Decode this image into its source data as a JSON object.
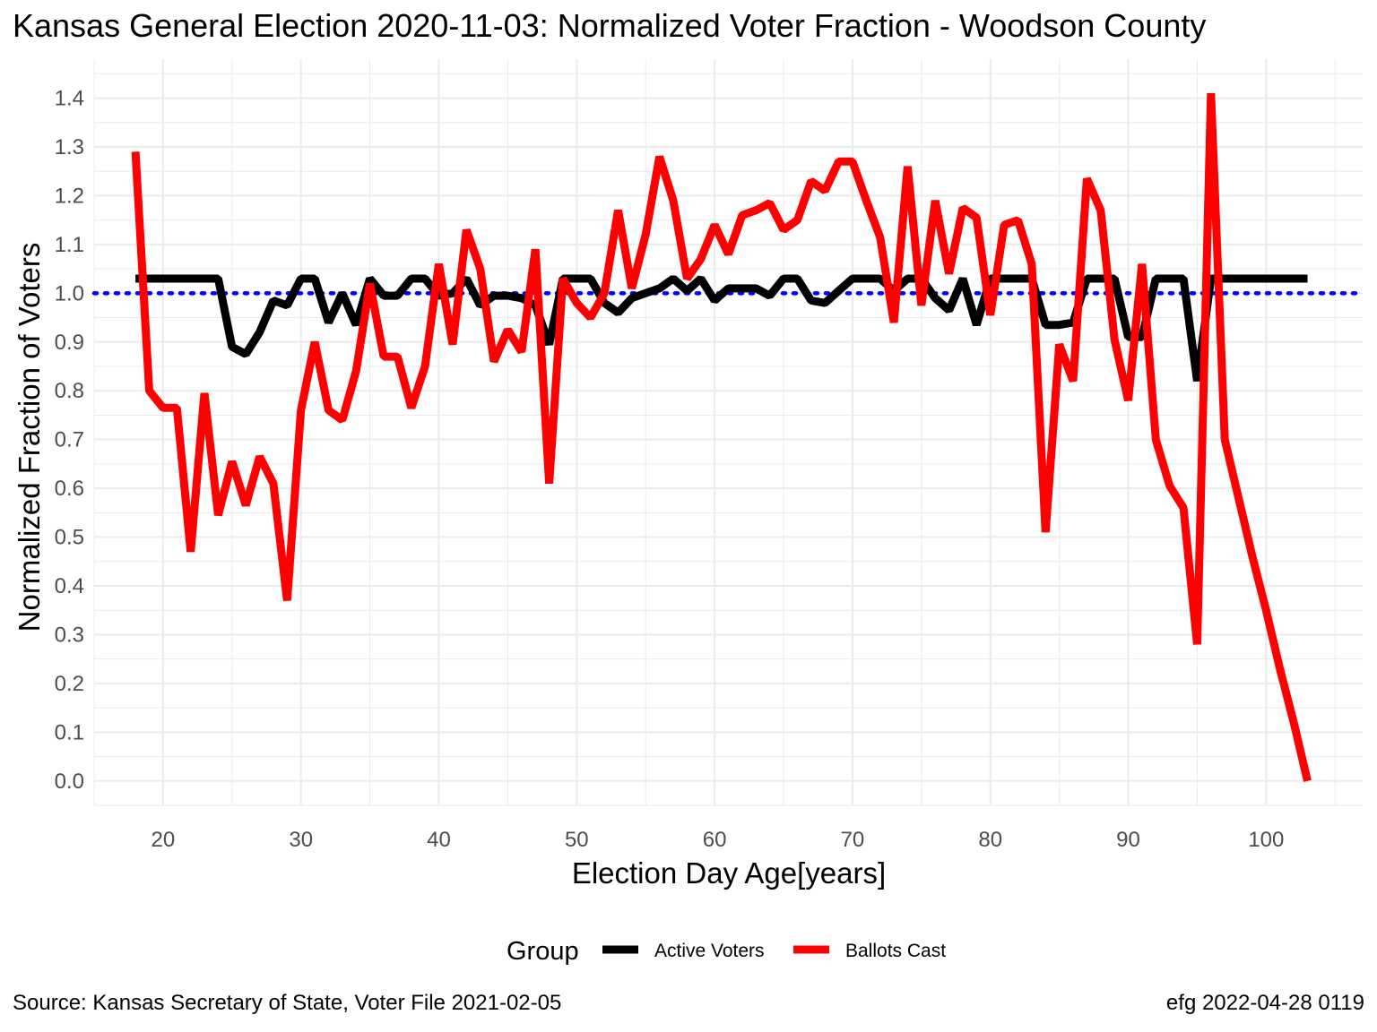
{
  "title": "Kansas General Election 2020-11-03:  Normalized Voter Fraction - Woodson County",
  "caption_left": "Source:  Kansas Secretary of State, Voter File  2021-02-05",
  "caption_right": "efg 2022-04-28 0119",
  "colors": {
    "active": "#000000",
    "ballots": "#ff0000",
    "reference": "#0000ff",
    "grid": "#ebebeb",
    "tick_text": "#4d4d4d"
  },
  "chart_data": {
    "type": "line",
    "title": "Kansas General Election 2020-11-03:  Normalized Voter Fraction - Woodson County",
    "xlabel": "Election Day Age[years]",
    "ylabel": "Normalized Fraction of Voters",
    "xlim": [
      15,
      107
    ],
    "ylim": [
      -0.05,
      1.48
    ],
    "xticks": [
      20,
      30,
      40,
      50,
      60,
      70,
      80,
      90,
      100
    ],
    "yticks": [
      0.0,
      0.1,
      0.2,
      0.3,
      0.4,
      0.5,
      0.6,
      0.7,
      0.8,
      0.9,
      1.0,
      1.1,
      1.2,
      1.3,
      1.4
    ],
    "ytick_labels": [
      "0.0",
      "0.1",
      "0.2",
      "0.3",
      "0.4",
      "0.5",
      "0.6",
      "0.7",
      "0.8",
      "0.9",
      "1.0",
      "1.1",
      "1.2",
      "1.3",
      "1.4"
    ],
    "grid": true,
    "legend": {
      "title": "Group",
      "position": "bottom"
    },
    "reference_line": {
      "y": 1.0,
      "style": "dotted"
    },
    "series": [
      {
        "name": "Active Voters",
        "color": "#000000",
        "x": [
          18,
          19,
          20,
          21,
          22,
          23,
          24,
          25,
          26,
          27,
          28,
          29,
          30,
          31,
          32,
          33,
          34,
          35,
          36,
          37,
          38,
          39,
          40,
          41,
          42,
          43,
          44,
          45,
          46,
          47,
          48,
          49,
          50,
          51,
          52,
          53,
          54,
          55,
          56,
          57,
          58,
          59,
          60,
          61,
          62,
          63,
          64,
          65,
          66,
          67,
          68,
          69,
          70,
          71,
          72,
          73,
          74,
          75,
          76,
          77,
          78,
          79,
          80,
          81,
          82,
          83,
          84,
          85,
          86,
          87,
          88,
          89,
          90,
          91,
          92,
          93,
          94,
          95,
          96,
          97,
          98,
          99,
          100,
          101,
          102,
          103
        ],
        "values": [
          1.03,
          1.03,
          1.03,
          1.03,
          1.03,
          1.03,
          1.03,
          0.89,
          0.875,
          0.92,
          0.985,
          0.975,
          1.03,
          1.03,
          0.94,
          1.0,
          0.935,
          1.03,
          0.995,
          0.995,
          1.03,
          1.03,
          0.995,
          1.0,
          1.03,
          0.975,
          0.995,
          0.995,
          0.99,
          0.975,
          0.895,
          1.03,
          1.03,
          1.03,
          0.98,
          0.96,
          0.99,
          1.0,
          1.01,
          1.03,
          1.005,
          1.03,
          0.985,
          1.01,
          1.01,
          1.01,
          0.995,
          1.03,
          1.03,
          0.985,
          0.98,
          1.005,
          1.03,
          1.03,
          1.03,
          1.005,
          1.03,
          1.03,
          0.99,
          0.965,
          1.03,
          0.935,
          1.03,
          1.03,
          1.03,
          1.03,
          0.935,
          0.935,
          0.94,
          1.03,
          1.03,
          1.03,
          0.91,
          0.91,
          1.03,
          1.03,
          1.03,
          0.82,
          1.03,
          1.03,
          1.03,
          1.03,
          1.03,
          1.03,
          1.03,
          1.03
        ]
      },
      {
        "name": "Ballots Cast",
        "color": "#ff0000",
        "x": [
          18,
          19,
          20,
          21,
          22,
          23,
          24,
          25,
          26,
          27,
          28,
          29,
          30,
          31,
          32,
          33,
          34,
          35,
          36,
          37,
          38,
          39,
          40,
          41,
          42,
          43,
          44,
          45,
          46,
          47,
          48,
          49,
          50,
          51,
          52,
          53,
          54,
          55,
          56,
          57,
          58,
          59,
          60,
          61,
          62,
          63,
          64,
          65,
          66,
          67,
          68,
          69,
          70,
          71,
          72,
          73,
          74,
          75,
          76,
          77,
          78,
          79,
          80,
          81,
          82,
          83,
          84,
          85,
          86,
          87,
          88,
          89,
          90,
          91,
          92,
          93,
          94,
          95,
          96,
          97,
          98,
          99,
          100,
          101,
          102,
          103
        ],
        "values": [
          1.29,
          0.8,
          0.765,
          0.765,
          0.47,
          0.795,
          0.545,
          0.655,
          0.565,
          0.665,
          0.61,
          0.37,
          0.76,
          0.9,
          0.76,
          0.74,
          0.84,
          1.02,
          0.87,
          0.87,
          0.765,
          0.85,
          1.06,
          0.895,
          1.13,
          1.05,
          0.86,
          0.925,
          0.88,
          1.09,
          0.61,
          1.03,
          0.98,
          0.95,
          1.0,
          1.17,
          1.01,
          1.12,
          1.28,
          1.19,
          1.03,
          1.07,
          1.14,
          1.08,
          1.16,
          1.17,
          1.185,
          1.13,
          1.15,
          1.23,
          1.21,
          1.27,
          1.27,
          1.19,
          1.115,
          0.94,
          1.26,
          0.975,
          1.19,
          1.04,
          1.175,
          1.155,
          0.955,
          1.14,
          1.15,
          1.06,
          0.51,
          0.895,
          0.82,
          1.235,
          1.17,
          0.905,
          0.78,
          1.06,
          0.7,
          0.605,
          0.56,
          0.28,
          1.41,
          0.7,
          0.58,
          0.46,
          0.35,
          0.23,
          0.12,
          0.0
        ]
      }
    ]
  }
}
